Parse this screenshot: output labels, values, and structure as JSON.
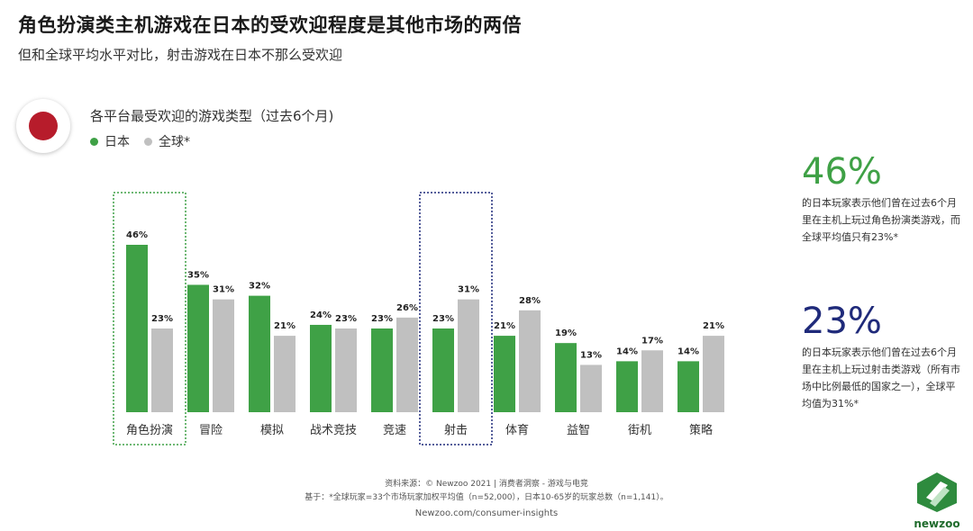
{
  "header": {
    "title": "角色扮演类主机游戏在日本的受欢迎程度是其他市场的两倍",
    "subtitle": "但和全球平均水平对比，射击游戏在日本不那么受欢迎"
  },
  "colors": {
    "japan": "#3fa146",
    "global": "#c0c0c0",
    "accent_green": "#3fa146",
    "accent_navy": "#1f2a7a",
    "flag_red": "#b71c2b"
  },
  "chart_data": {
    "type": "bar",
    "title": "各平台最受欢迎的游戏类型（过去6个月)",
    "categories": [
      "角色扮演",
      "冒险",
      "模拟",
      "战术竞技",
      "竞速",
      "射击",
      "体育",
      "益智",
      "街机",
      "策略"
    ],
    "series": [
      {
        "name": "日本",
        "values": [
          46,
          35,
          32,
          24,
          23,
          23,
          21,
          19,
          14,
          14
        ]
      },
      {
        "name": "全球*",
        "values": [
          23,
          31,
          21,
          23,
          26,
          31,
          28,
          13,
          17,
          21
        ]
      }
    ],
    "value_suffix": "%",
    "ylim": [
      0,
      46
    ],
    "highlighted": [
      {
        "category": "角色扮演",
        "color": "#3fa146"
      },
      {
        "category": "射击",
        "color": "#1f2a7a"
      }
    ]
  },
  "stats": [
    {
      "value": "46%",
      "text": "的日本玩家表示他们曾在过去6个月里在主机上玩过角色扮演类游戏，而全球平均值只有23%*"
    },
    {
      "value": "23%",
      "text": "的日本玩家表示他们曾在过去6个月里在主机上玩过射击类游戏（所有市场中比例最低的国家之一），全球平均值为31%*"
    }
  ],
  "footer": {
    "source": "资料来源：© Newzoo 2021 | 消费者洞察 - 游戏与电竞",
    "note": "基于：*全球玩家=33个市场玩家加权平均值（n=52,000），日本10-65岁的玩家总数（n=1,141）。",
    "url": "Newzoo.com/consumer-insights"
  },
  "logo": {
    "text": "newzoo"
  }
}
